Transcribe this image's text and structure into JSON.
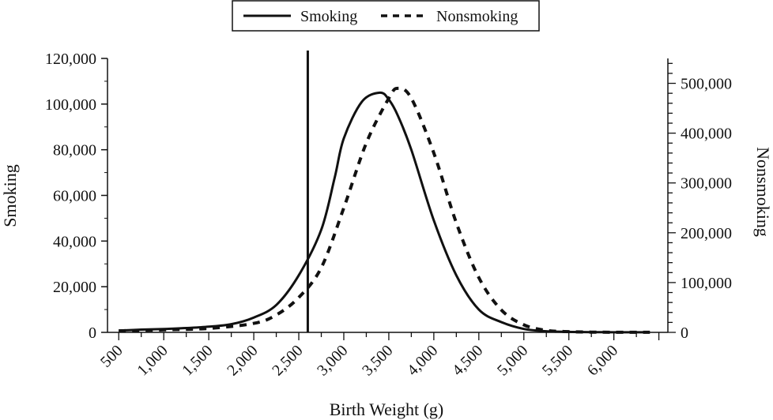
{
  "chart_data": {
    "type": "line",
    "title": "",
    "xlabel": "Birth Weight (g)",
    "ylabel_left": "Smoking",
    "ylabel_right": "Nonsmoking",
    "x_ticks": [
      500,
      1000,
      1500,
      2000,
      2500,
      3000,
      3500,
      4000,
      4500,
      5000,
      5500,
      6000
    ],
    "x_tick_labels": [
      "500",
      "1,000",
      "1,500",
      "2,000",
      "2,500",
      "3,000",
      "3,500",
      "4,000",
      "4,500",
      "5,000",
      "5,500",
      "6,000"
    ],
    "xlim": [
      375,
      6600
    ],
    "ylim_left": [
      0,
      120000
    ],
    "ylim_right": [
      0,
      550000
    ],
    "y_left_ticks": [
      0,
      20000,
      40000,
      60000,
      80000,
      100000,
      120000
    ],
    "y_left_tick_labels": [
      "0",
      "20,000",
      "40,000",
      "60,000",
      "80,000",
      "100,000",
      "120,000"
    ],
    "y_right_ticks": [
      0,
      100000,
      200000,
      300000,
      400000,
      500000
    ],
    "y_right_tick_labels": [
      "0",
      "100,000",
      "200,000",
      "300,000",
      "400,000",
      "500,000"
    ],
    "reference_line_x": 2600,
    "grid": false,
    "legend": {
      "placement": "top-center",
      "entries": [
        "Smoking",
        "Nonsmoking"
      ]
    },
    "series": [
      {
        "name": "Smoking",
        "axis": "left",
        "style": "solid",
        "color": "#111111",
        "x": [
          500,
          750,
          1000,
          1250,
          1500,
          1750,
          2000,
          2250,
          2500,
          2750,
          2900,
          3000,
          3200,
          3400,
          3500,
          3600,
          3750,
          4000,
          4250,
          4500,
          4750,
          5000,
          5250,
          5500,
          5750,
          6000,
          6250,
          6400
        ],
        "y": [
          800,
          1200,
          1500,
          1900,
          2500,
          3600,
          6500,
          12000,
          25000,
          45000,
          68000,
          85000,
          101000,
          105000,
          102000,
          95000,
          80000,
          49000,
          25000,
          10000,
          4500,
          1500,
          500,
          200,
          100,
          50,
          50,
          50
        ]
      },
      {
        "name": "Nonsmoking",
        "axis": "right",
        "style": "dashed",
        "color": "#111111",
        "x": [
          500,
          1000,
          1500,
          2000,
          2250,
          2500,
          2750,
          3000,
          3250,
          3500,
          3600,
          3750,
          4000,
          4250,
          4500,
          4750,
          5000,
          5250,
          5500,
          5750,
          6000,
          6400
        ],
        "y": [
          3000,
          5000,
          8000,
          18000,
          35000,
          70000,
          130000,
          250000,
          380000,
          470000,
          490000,
          470000,
          360000,
          220000,
          110000,
          45000,
          15000,
          4000,
          1500,
          500,
          200,
          100
        ]
      }
    ]
  }
}
